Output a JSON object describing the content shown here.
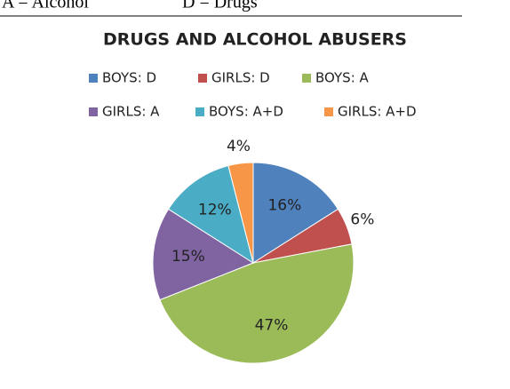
{
  "header": {
    "left": "A = Alcohol",
    "right": "D = Drugs"
  },
  "chart_data": {
    "type": "pie",
    "title": "DRUGS AND ALCOHOL ABUSERS",
    "categories": [
      "BOYS: D",
      "GIRLS: D",
      "BOYS: A",
      "GIRLS: A",
      "BOYS: A+D",
      "GIRLS: A+D"
    ],
    "values": [
      16,
      6,
      47,
      15,
      12,
      4
    ],
    "value_labels": [
      "16%",
      "6%",
      "47%",
      "15%",
      "12%",
      "4%"
    ],
    "colors": [
      "#4f81bd",
      "#c0504d",
      "#9bbb59",
      "#8064a2",
      "#4bacc6",
      "#f79646"
    ],
    "legend": "top"
  }
}
